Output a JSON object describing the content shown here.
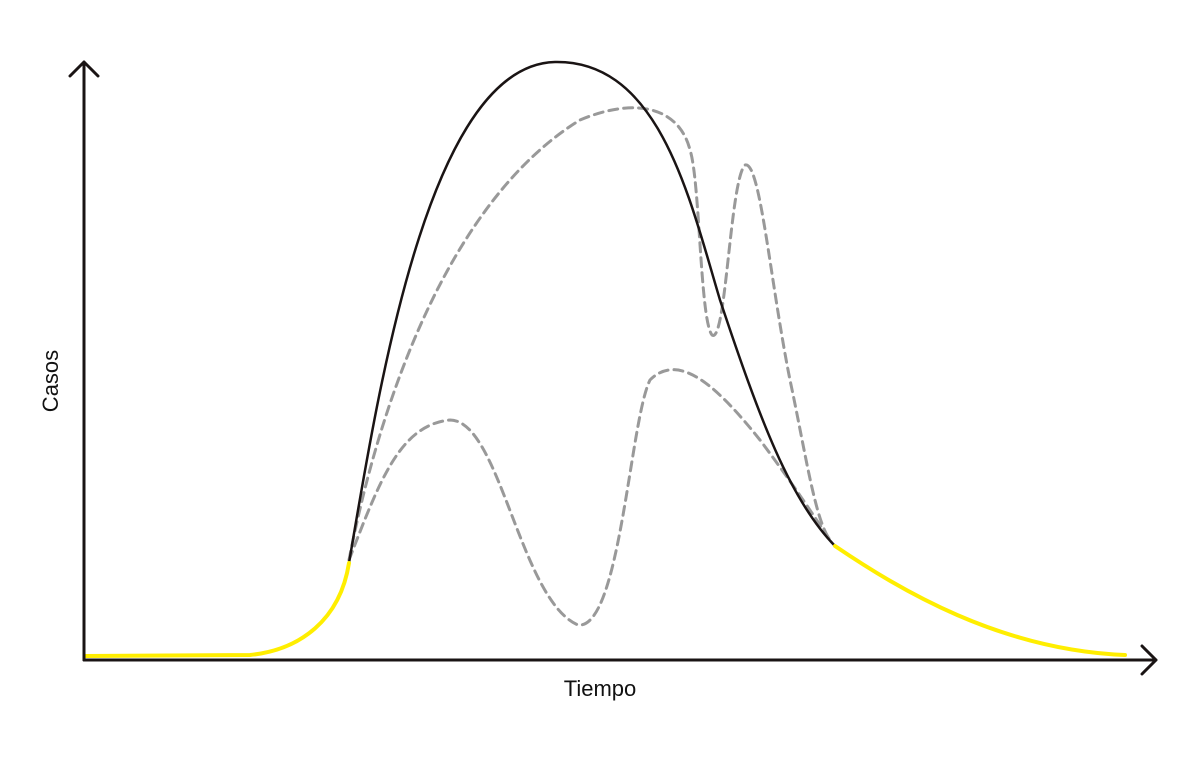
{
  "axes": {
    "y_label": "Casos",
    "x_label": "Tiempo"
  }
}
